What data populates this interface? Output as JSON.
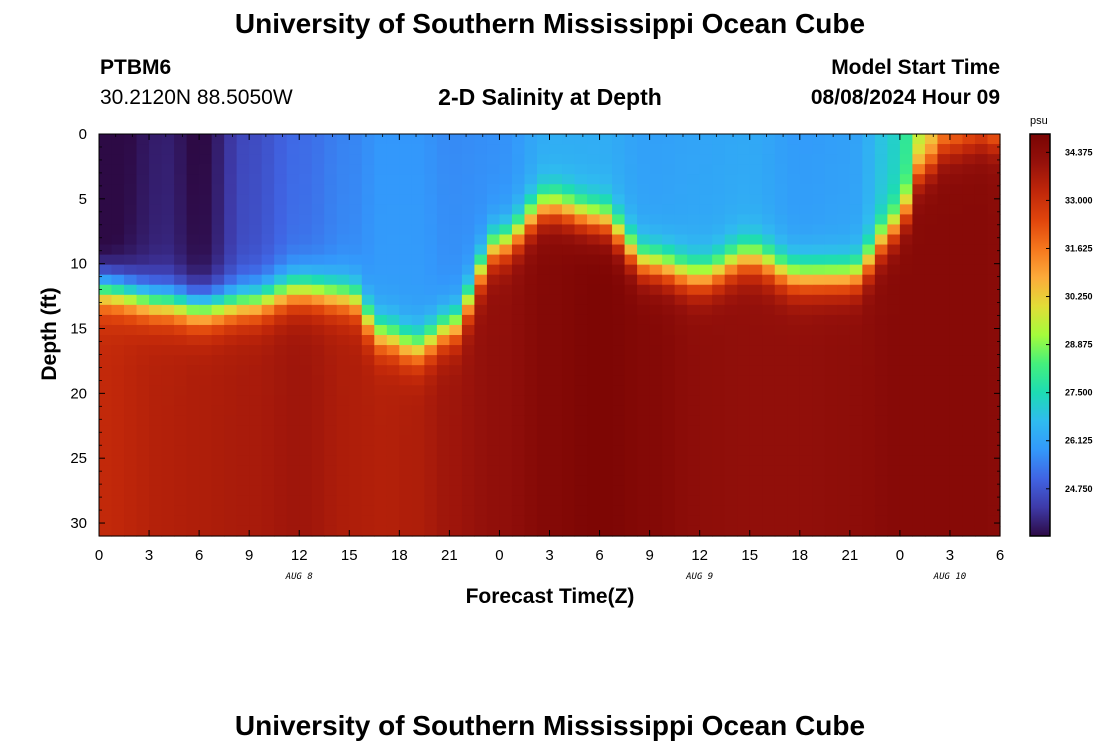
{
  "page": {
    "title_top": "University of Southern Mississippi Ocean Cube",
    "title_bottom": "University of Southern Mississippi Ocean Cube",
    "station_id": "PTBM6",
    "station_coords": "30.2120N  88.5050W",
    "model_start_label": "Model Start Time",
    "model_start_value": "08/08/2024 Hour 09"
  },
  "chart_data": {
    "type": "heatmap",
    "title": "2-D Salinity at Depth",
    "xlabel": "Forecast Time(Z)",
    "ylabel": "Depth (ft)",
    "x_tick_labels": [
      "0",
      "3",
      "6",
      "9",
      "12",
      "15",
      "18",
      "21",
      "0",
      "3",
      "6",
      "9",
      "12",
      "15",
      "18",
      "21",
      "0",
      "3",
      "6"
    ],
    "date_labels": [
      {
        "text": "AUG 8",
        "hour": 12
      },
      {
        "text": "AUG 9",
        "hour": 36
      },
      {
        "text": "AUG 10",
        "hour": 51
      }
    ],
    "x_range_hours": [
      0,
      54
    ],
    "y_ticks": [
      0,
      5,
      10,
      15,
      20,
      25,
      30
    ],
    "ylim": [
      0,
      31
    ],
    "colorbar": {
      "units": "psu",
      "min": 23.4,
      "max": 34.9,
      "tick_values": [
        24.75,
        26.125,
        27.5,
        28.875,
        30.25,
        31.625,
        33.0,
        34.375
      ],
      "tick_labels": [
        "24.750",
        "26.125",
        "27.500",
        "28.875",
        "30.250",
        "31.625",
        "33.000",
        "34.375"
      ],
      "colors": [
        "#2d0a45",
        "#3e3aa8",
        "#4064e3",
        "#3398fb",
        "#2fbbef",
        "#1ddcb3",
        "#44f07c",
        "#a4fc3b",
        "#e1dd37",
        "#fcab3a",
        "#f6771d",
        "#e0450c",
        "#c0270a",
        "#95110b",
        "#7a0403"
      ]
    },
    "profiles": [
      {
        "hour": 0,
        "surface": 23.4,
        "halocline_depth": 12.0,
        "deep": 33.2
      },
      {
        "hour": 4,
        "surface": 24.0,
        "halocline_depth": 13.0,
        "deep": 33.5
      },
      {
        "hour": 6,
        "surface": 23.6,
        "halocline_depth": 13.5,
        "deep": 33.6
      },
      {
        "hour": 9,
        "surface": 24.8,
        "halocline_depth": 13.0,
        "deep": 33.7
      },
      {
        "hour": 12,
        "surface": 25.4,
        "halocline_depth": 12.0,
        "deep": 33.9
      },
      {
        "hour": 15,
        "surface": 25.8,
        "halocline_depth": 12.5,
        "deep": 33.6
      },
      {
        "hour": 17,
        "surface": 26.1,
        "halocline_depth": 15.5,
        "deep": 33.5
      },
      {
        "hour": 19,
        "surface": 26.1,
        "halocline_depth": 16.5,
        "deep": 33.6
      },
      {
        "hour": 21,
        "surface": 25.9,
        "halocline_depth": 15.0,
        "deep": 33.9
      },
      {
        "hour": 24,
        "surface": 26.0,
        "halocline_depth": 8.5,
        "deep": 34.2
      },
      {
        "hour": 27,
        "surface": 26.6,
        "halocline_depth": 5.5,
        "deep": 34.6
      },
      {
        "hour": 30,
        "surface": 26.6,
        "halocline_depth": 6.5,
        "deep": 34.8
      },
      {
        "hour": 33,
        "surface": 26.3,
        "halocline_depth": 10.0,
        "deep": 34.6
      },
      {
        "hour": 36,
        "surface": 26.4,
        "halocline_depth": 11.0,
        "deep": 34.3
      },
      {
        "hour": 39,
        "surface": 26.5,
        "halocline_depth": 9.5,
        "deep": 34.2
      },
      {
        "hour": 42,
        "surface": 26.2,
        "halocline_depth": 11.0,
        "deep": 34.2
      },
      {
        "hour": 45,
        "surface": 26.3,
        "halocline_depth": 11.0,
        "deep": 34.3
      },
      {
        "hour": 48,
        "surface": 27.5,
        "halocline_depth": 7.0,
        "deep": 34.5
      },
      {
        "hour": 49,
        "surface": 29.6,
        "halocline_depth": 3.0,
        "deep": 34.5
      },
      {
        "hour": 51,
        "surface": 31.2,
        "halocline_depth": 1.0,
        "deep": 34.5
      },
      {
        "hour": 53,
        "surface": 31.6,
        "halocline_depth": 0.5,
        "deep": 34.5
      },
      {
        "hour": 54,
        "surface": 30.4,
        "halocline_depth": 0.5,
        "deep": 34.4
      }
    ]
  }
}
